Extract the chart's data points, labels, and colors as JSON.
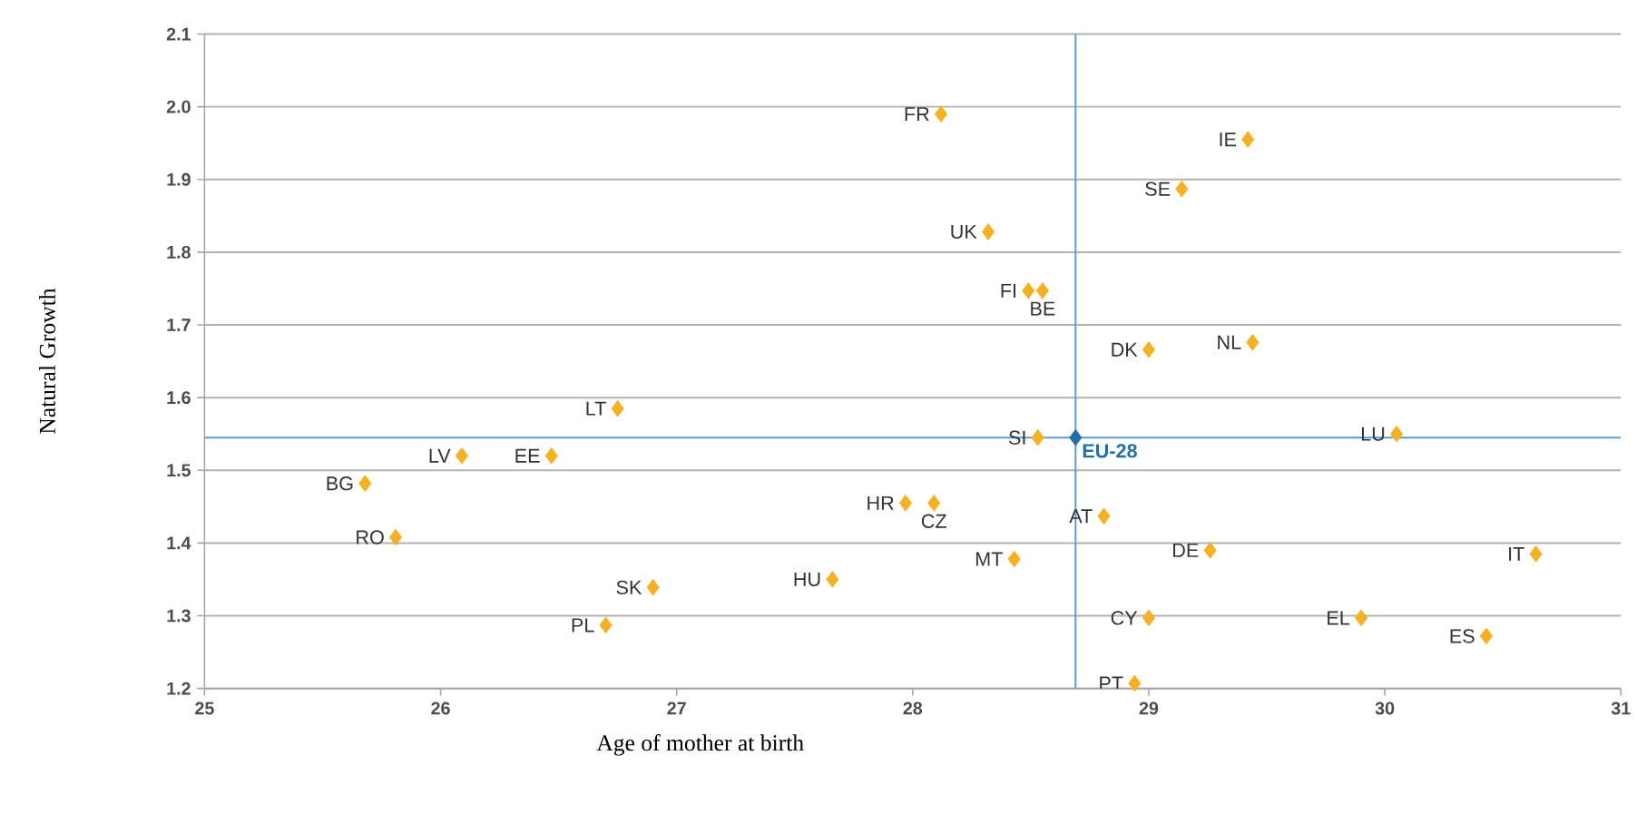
{
  "chart_data": {
    "type": "scatter",
    "xlabel": "Age of mother at birth",
    "ylabel": "Natural Growth",
    "xlim": [
      25,
      31
    ],
    "ylim": [
      1.2,
      2.1
    ],
    "xticks": [
      25,
      26,
      27,
      28,
      29,
      30,
      31
    ],
    "yticks": [
      {
        "value": 1.2,
        "label": "1.2"
      },
      {
        "value": 1.3,
        "label": "1.3"
      },
      {
        "value": 1.4,
        "label": "1.4"
      },
      {
        "value": 1.5,
        "label": "1.5"
      },
      {
        "value": 1.6,
        "label": "1.6"
      },
      {
        "value": 1.7,
        "label": "1.7"
      },
      {
        "value": 1.8,
        "label": "1.8"
      },
      {
        "value": 1.9,
        "label": "1.9"
      },
      {
        "value": 2.0,
        "label": "2.0"
      },
      {
        "value": 2.1,
        "label": "2.1"
      }
    ],
    "grid": "y",
    "marker": "diamond",
    "series": [
      {
        "color": "#f5b120",
        "x": [
          28.12,
          29.42,
          29.14,
          28.32,
          28.49,
          28.55,
          29.0,
          29.44,
          26.75,
          28.53,
          30.05,
          26.09,
          26.47,
          25.68,
          25.81,
          27.97,
          28.09,
          28.81,
          28.43,
          29.26,
          30.64,
          26.9,
          27.66,
          26.7,
          29.0,
          29.9,
          30.43,
          28.94
        ],
        "values": [
          1.99,
          1.955,
          1.887,
          1.828,
          1.747,
          1.747,
          1.666,
          1.676,
          1.585,
          1.545,
          1.55,
          1.52,
          1.52,
          1.482,
          1.408,
          1.455,
          1.455,
          1.437,
          1.378,
          1.39,
          1.385,
          1.339,
          1.35,
          1.287,
          1.297,
          1.297,
          1.272,
          1.207
        ]
      },
      {
        "name": "EU-28",
        "color": "#1f6fa8",
        "x": [
          28.69
        ],
        "values": [
          1.545
        ]
      }
    ],
    "ref_lines": [
      {
        "axis": "x",
        "value": 28.69,
        "color": "#5b9bd5"
      },
      {
        "axis": "y",
        "value": 1.545,
        "color": "#5b9bd5"
      }
    ],
    "annotations": [
      {
        "text": "FR",
        "x": 28.12,
        "y": 1.99
      },
      {
        "text": "IE",
        "x": 29.42,
        "y": 1.955
      },
      {
        "text": "SE",
        "x": 29.14,
        "y": 1.887
      },
      {
        "text": "UK",
        "x": 28.32,
        "y": 1.828
      },
      {
        "text": "FI",
        "x": 28.49,
        "y": 1.747
      },
      {
        "text": "BE",
        "x": 28.55,
        "y": 1.747
      },
      {
        "text": "DK",
        "x": 29.0,
        "y": 1.666
      },
      {
        "text": "NL",
        "x": 29.44,
        "y": 1.676
      },
      {
        "text": "LT",
        "x": 26.75,
        "y": 1.585
      },
      {
        "text": "SI",
        "x": 28.53,
        "y": 1.545
      },
      {
        "text": "LU",
        "x": 30.05,
        "y": 1.55
      },
      {
        "text": "LV",
        "x": 26.09,
        "y": 1.52
      },
      {
        "text": "EE",
        "x": 26.47,
        "y": 1.52
      },
      {
        "text": "BG",
        "x": 25.68,
        "y": 1.482
      },
      {
        "text": "RO",
        "x": 25.81,
        "y": 1.408
      },
      {
        "text": "HR",
        "x": 27.97,
        "y": 1.455
      },
      {
        "text": "CZ",
        "x": 28.09,
        "y": 1.455
      },
      {
        "text": "AT",
        "x": 28.81,
        "y": 1.437
      },
      {
        "text": "MT",
        "x": 28.43,
        "y": 1.378
      },
      {
        "text": "DE",
        "x": 29.26,
        "y": 1.39
      },
      {
        "text": "IT",
        "x": 30.64,
        "y": 1.385
      },
      {
        "text": "SK",
        "x": 26.9,
        "y": 1.339
      },
      {
        "text": "HU",
        "x": 27.66,
        "y": 1.35
      },
      {
        "text": "PL",
        "x": 26.7,
        "y": 1.287
      },
      {
        "text": "CY",
        "x": 29.0,
        "y": 1.297
      },
      {
        "text": "EL",
        "x": 29.9,
        "y": 1.297
      },
      {
        "text": "ES",
        "x": 30.43,
        "y": 1.272
      },
      {
        "text": "PT",
        "x": 28.94,
        "y": 1.207
      }
    ]
  }
}
